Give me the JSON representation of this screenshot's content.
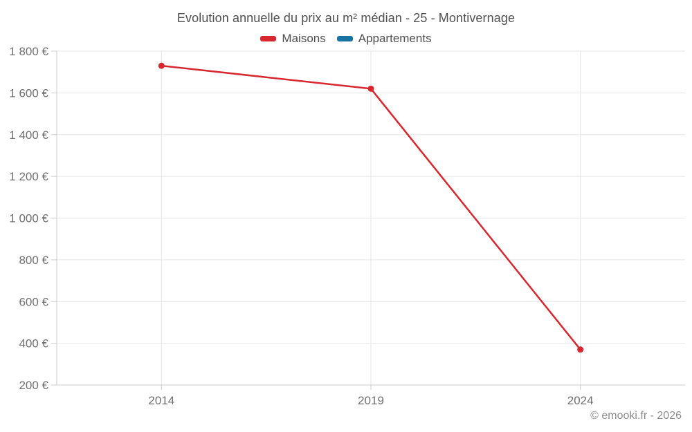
{
  "title": "Evolution annuelle du prix au m² médian - 25 - Montivernage",
  "legend": {
    "items": [
      {
        "label": "Maisons",
        "color": "#d7282f"
      },
      {
        "label": "Appartements",
        "color": "#1673a3"
      }
    ]
  },
  "footer": {
    "copyright": "© emooki.fr - 2026"
  },
  "colors": {
    "grid": "#e6e6e6",
    "axis": "#cccccc",
    "tick_text": "#6f6f6f",
    "title_text": "#4f4f4f"
  },
  "chart_data": {
    "type": "line",
    "title": "Evolution annuelle du prix au m² médian - 25 - Montivernage",
    "categories": [
      "2014",
      "2019",
      "2024"
    ],
    "series": [
      {
        "name": "Maisons",
        "color": "#d7282f",
        "values": [
          1730,
          1620,
          370
        ]
      },
      {
        "name": "Appartements",
        "color": "#1673a3",
        "values": []
      }
    ],
    "xlabel": "",
    "ylabel": "",
    "y_axis": {
      "min": 200,
      "max": 1800,
      "step": 200,
      "unit": "€",
      "tick_labels": [
        "200 €",
        "400 €",
        "600 €",
        "800 €",
        "1 000 €",
        "1 200 €",
        "1 400 €",
        "1 600 €",
        "1 800 €"
      ]
    },
    "x_axis": {
      "labels": [
        "2014",
        "2019",
        "2024"
      ]
    },
    "grid": true,
    "legend_position": "top",
    "marker": "circle"
  }
}
